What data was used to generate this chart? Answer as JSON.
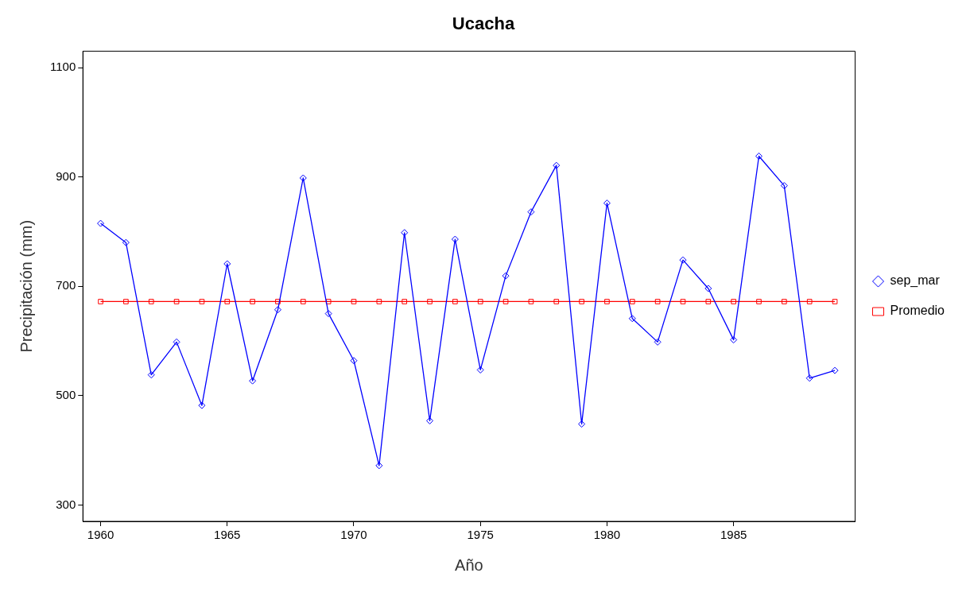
{
  "chart_data": {
    "type": "line",
    "title": "Ucacha",
    "xlabel": "Año",
    "ylabel": "Precipitación (mm)",
    "x": [
      1960,
      1961,
      1962,
      1963,
      1964,
      1965,
      1966,
      1967,
      1968,
      1969,
      1970,
      1971,
      1972,
      1973,
      1974,
      1975,
      1976,
      1977,
      1978,
      1979,
      1980,
      1981,
      1982,
      1983,
      1984,
      1985,
      1986,
      1987,
      1988,
      1989
    ],
    "series": [
      {
        "name": "sep_mar",
        "color": "#0000ff",
        "marker": "diamond",
        "values": [
          815,
          780,
          538,
          598,
          482,
          741,
          527,
          657,
          898,
          650,
          564,
          372,
          798,
          454,
          786,
          547,
          719,
          836,
          921,
          448,
          852,
          641,
          598,
          748,
          696,
          602,
          938,
          884,
          532,
          546
        ]
      },
      {
        "name": "Promedio",
        "color": "#ff0000",
        "marker": "square",
        "values": [
          672,
          672,
          672,
          672,
          672,
          672,
          672,
          672,
          672,
          672,
          672,
          672,
          672,
          672,
          672,
          672,
          672,
          672,
          672,
          672,
          672,
          672,
          672,
          672,
          672,
          672,
          672,
          672,
          672,
          672
        ]
      }
    ],
    "xlim": [
      1959.3,
      1989.8
    ],
    "xticks": [
      1960,
      1965,
      1970,
      1975,
      1980,
      1985
    ],
    "ylim": [
      270,
      1130
    ],
    "yticks": [
      300,
      500,
      700,
      900,
      1100
    ],
    "legend": "right",
    "line_style": "solid"
  }
}
